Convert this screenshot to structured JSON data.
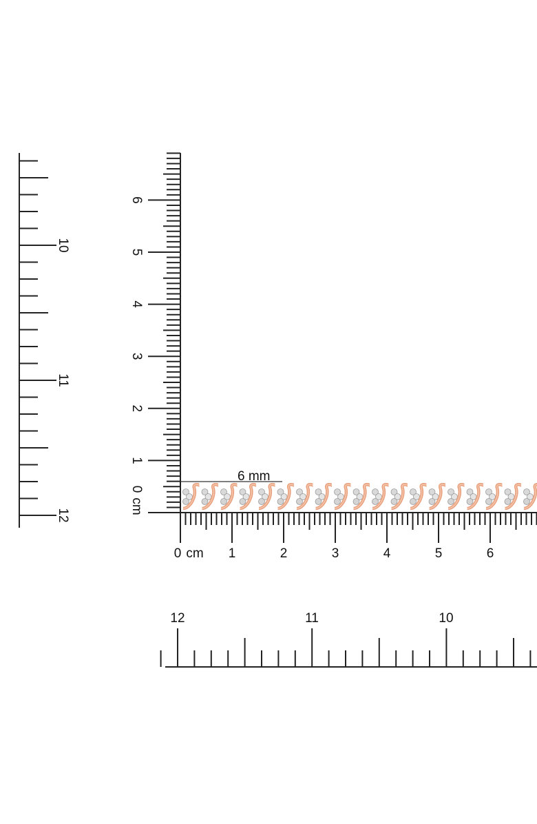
{
  "left_ruler": {
    "labels": [
      "10",
      "11",
      "12"
    ]
  },
  "cm_ruler": {
    "vertical_labels": [
      "0",
      "1",
      "2",
      "3",
      "4",
      "5",
      "6"
    ],
    "vertical_unit": "cm",
    "horizontal_labels": [
      "0",
      "1",
      "2",
      "3",
      "4",
      "5",
      "6"
    ],
    "horizontal_unit": "cm"
  },
  "measurement": {
    "label": "6 mm"
  },
  "bottom_ruler": {
    "labels": [
      "12",
      "11",
      "10"
    ]
  }
}
